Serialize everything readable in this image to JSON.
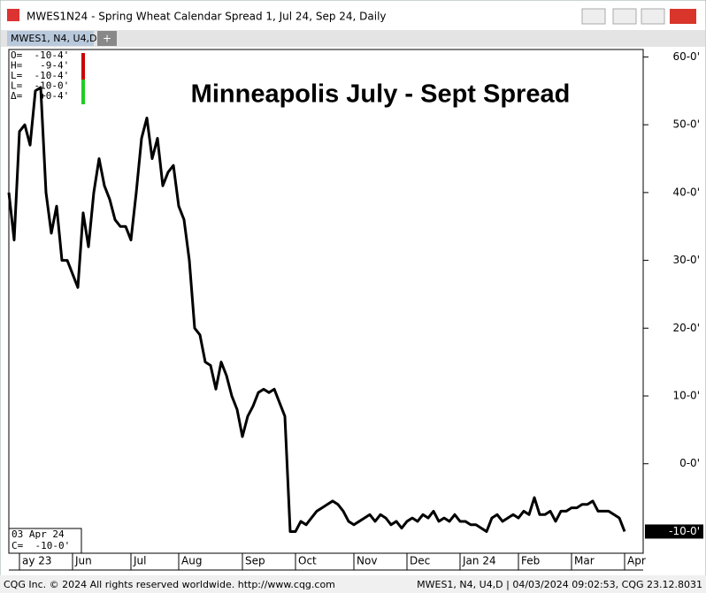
{
  "window_title": "MWES1N24 - Spring Wheat Calendar Spread 1, Jul 24, Sep 24, Daily",
  "tab": {
    "label": "MWES1, N4, U4,D",
    "add": "+"
  },
  "info_panel": [
    "O=  -10-4'",
    "H=   -9-4'",
    "L=  -10-4'",
    "L=  -10-0'",
    "Δ=   +0-4'"
  ],
  "cursor_box": [
    "03 Apr 24",
    "C=  -10-0'"
  ],
  "footer": {
    "left": "CQG Inc. © 2024 All rights reserved worldwide. http://www.cqg.com",
    "right": "MWES1, N4, U4,D | 04/03/2024 09:02:53, CQG 23.12.8031"
  },
  "chart_data": {
    "type": "line",
    "title": "Minneapolis July - Sept Spread",
    "color": "#000000",
    "categories": [
      null,
      null,
      "ay 23",
      null,
      null,
      null,
      null,
      null,
      null,
      null,
      null,
      null,
      "Jun",
      null,
      null,
      null,
      null,
      null,
      null,
      null,
      null,
      null,
      null,
      "Jul",
      null,
      null,
      null,
      null,
      null,
      null,
      null,
      null,
      "Aug",
      null,
      null,
      null,
      null,
      null,
      null,
      null,
      null,
      null,
      null,
      null,
      "Sep",
      null,
      null,
      null,
      null,
      null,
      null,
      null,
      null,
      null,
      "Oct",
      null,
      null,
      null,
      null,
      null,
      null,
      null,
      null,
      null,
      null,
      "Nov",
      null,
      null,
      null,
      null,
      null,
      null,
      null,
      null,
      null,
      "Dec",
      null,
      null,
      null,
      null,
      null,
      null,
      null,
      null,
      null,
      "Jan 24",
      null,
      null,
      null,
      null,
      null,
      null,
      null,
      null,
      null,
      null,
      "Feb",
      null,
      null,
      null,
      null,
      null,
      null,
      null,
      null,
      null,
      "Mar",
      null,
      null,
      null,
      null,
      null,
      null,
      null,
      null,
      null,
      "Apr"
    ],
    "values": [
      40,
      33,
      49,
      50,
      47,
      55,
      55.5,
      40,
      34,
      38,
      30,
      30,
      28,
      26,
      37,
      32,
      40,
      45,
      41,
      39,
      36,
      35,
      35,
      33,
      40,
      48,
      51,
      45,
      48,
      41,
      43,
      44,
      38,
      36,
      30,
      20,
      19,
      15,
      14.5,
      11,
      15,
      13,
      10,
      8,
      4,
      7,
      8.5,
      10.5,
      11,
      10.5,
      11,
      9,
      7,
      -10,
      -10,
      -8.5,
      -9,
      -8,
      -7,
      -6.5,
      -6,
      -5.5,
      -6,
      -7,
      -8.5,
      -9,
      -8.5,
      -8,
      -7.5,
      -8.5,
      -7.5,
      -8,
      -9,
      -8.5,
      -9.5,
      -8.5,
      -8,
      -8.5,
      -7.5,
      -8,
      -7,
      -8.5,
      -8,
      -8.5,
      -7.5,
      -8.5,
      -8.5,
      -9,
      -9,
      -9.5,
      -10,
      -8,
      -7.5,
      -8.5,
      -8,
      -7.5,
      -8,
      -7,
      -7.5,
      -5,
      -7.5,
      -7.5,
      -7,
      -8.5,
      -7,
      -7,
      -6.5,
      -6.5,
      -6,
      -6,
      -5.5,
      -7,
      -7,
      -7,
      -7.5,
      -8,
      -10
    ],
    "ylim": [
      -13.2,
      61.1
    ],
    "yticks": [
      {
        "value": 60,
        "label": "60-0'"
      },
      {
        "value": 50,
        "label": "50-0'"
      },
      {
        "value": 40,
        "label": "40-0'"
      },
      {
        "value": 30,
        "label": "30-0'"
      },
      {
        "value": 20,
        "label": "20-0'"
      },
      {
        "value": 10,
        "label": "10-0'"
      },
      {
        "value": 0,
        "label": "0-0'"
      }
    ],
    "price_marker": {
      "value": -10,
      "label": "-10-0'"
    }
  }
}
